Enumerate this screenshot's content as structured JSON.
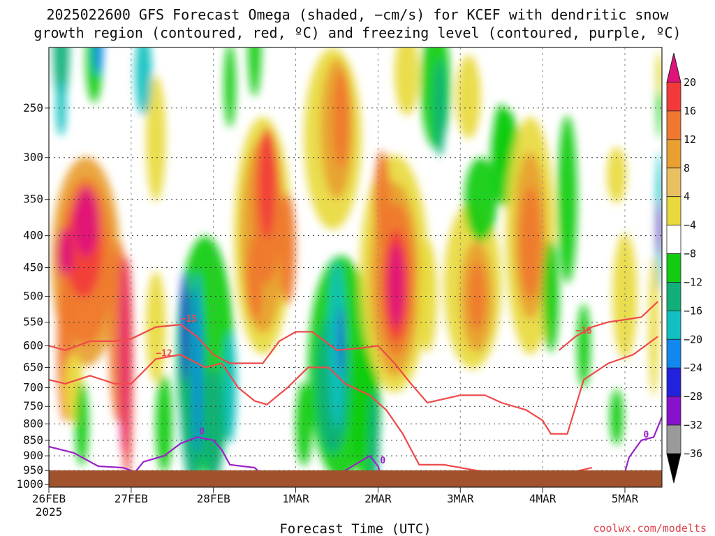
{
  "chart_data": {
    "type": "time-height contour (shaded omega with contoured temperature)",
    "title_lines": [
      "2025022600 GFS Forecast Omega (shaded, −cm/s) for KCEF with dendritic snow",
      "growth region (contoured, red, ºC) and freezing level (contoured, purple, ºC)"
    ],
    "xlabel": "Forecast Time (UTC)",
    "ylabel": "",
    "credit": "coolwx.com/modelts",
    "x_ticks": [
      {
        "label": "26FEB",
        "sublabel": "2025",
        "day": 0
      },
      {
        "label": "27FEB",
        "day": 1
      },
      {
        "label": "28FEB",
        "day": 2
      },
      {
        "label": "1MAR",
        "day": 3
      },
      {
        "label": "2MAR",
        "day": 4
      },
      {
        "label": "3MAR",
        "day": 5
      },
      {
        "label": "4MAR",
        "day": 6
      },
      {
        "label": "5MAR",
        "day": 7
      }
    ],
    "x_range_days": [
      0,
      7.45
    ],
    "y_ticks": [
      250,
      300,
      350,
      400,
      450,
      500,
      550,
      600,
      650,
      700,
      750,
      800,
      850,
      900,
      950,
      1000
    ],
    "y_range_hpa": [
      200,
      1010
    ],
    "y_scale": "log-pressure",
    "grid": true,
    "colorbar": {
      "labels": [
        "20",
        "16",
        "12",
        "8",
        "4",
        "−4",
        "−8",
        "−12",
        "−16",
        "−20",
        "−24",
        "−28",
        "−32",
        "−36"
      ],
      "colors": [
        "#e0137a",
        "#f23a3a",
        "#f07830",
        "#e8a030",
        "#e8c060",
        "#e8da3c",
        "#ffffff",
        "#11cc11",
        "#11b07a",
        "#11c0c0",
        "#1188ee",
        "#2222dd",
        "#8811cc",
        "#9a9a9a"
      ]
    },
    "ground_color": "#a0522d",
    "contours": {
      "dgz_red": [
        {
          "label": "−12",
          "points": [
            [
              0,
              680
            ],
            [
              0.2,
              690
            ],
            [
              0.5,
              670
            ],
            [
              0.8,
              690
            ],
            [
              1.0,
              690
            ],
            [
              1.3,
              630
            ],
            [
              1.6,
              620
            ],
            [
              1.9,
              650
            ],
            [
              2.1,
              640
            ],
            [
              2.3,
              700
            ],
            [
              2.5,
              735
            ],
            [
              2.65,
              745
            ],
            [
              2.9,
              700
            ],
            [
              3.15,
              650
            ],
            [
              3.4,
              650
            ],
            [
              3.6,
              690
            ],
            [
              3.9,
              720
            ],
            [
              4.1,
              760
            ],
            [
              4.3,
              830
            ],
            [
              4.5,
              930
            ],
            [
              4.8,
              930
            ],
            [
              5.2,
              950
            ],
            [
              5.6,
              960
            ],
            [
              5.9,
              965
            ],
            [
              6.3,
              960
            ],
            [
              6.6,
              940
            ]
          ]
        },
        {
          "label": "−15",
          "points": [
            [
              0,
              600
            ],
            [
              0.2,
              610
            ],
            [
              0.5,
              590
            ],
            [
              0.8,
              590
            ],
            [
              1.0,
              585
            ],
            [
              1.3,
              560
            ],
            [
              1.6,
              555
            ],
            [
              1.8,
              580
            ],
            [
              2.0,
              620
            ],
            [
              2.2,
              640
            ],
            [
              2.4,
              640
            ],
            [
              2.6,
              640
            ],
            [
              2.8,
              590
            ],
            [
              3.0,
              570
            ],
            [
              3.2,
              570
            ],
            [
              3.5,
              610
            ],
            [
              3.8,
              605
            ],
            [
              4.0,
              600
            ],
            [
              4.2,
              640
            ],
            [
              4.4,
              690
            ],
            [
              4.6,
              740
            ],
            [
              5.0,
              720
            ],
            [
              5.3,
              720
            ],
            [
              5.5,
              740
            ],
            [
              5.8,
              760
            ],
            [
              6.0,
              790
            ],
            [
              6.1,
              830
            ],
            [
              6.3,
              830
            ],
            [
              6.5,
              680
            ],
            [
              6.8,
              640
            ],
            [
              7.1,
              620
            ],
            [
              7.4,
              580
            ]
          ]
        },
        {
          "label": "−18",
          "points": [
            [
              6.2,
              610
            ],
            [
              6.4,
              580
            ],
            [
              6.6,
              560
            ],
            [
              6.8,
              550
            ],
            [
              7.0,
              545
            ],
            [
              7.2,
              540
            ],
            [
              7.4,
              510
            ]
          ]
        }
      ],
      "freezing_purple": [
        {
          "label": "0",
          "points": [
            [
              0,
              870
            ],
            [
              0.3,
              890
            ],
            [
              0.6,
              935
            ],
            [
              0.9,
              940
            ],
            [
              1.05,
              955
            ],
            [
              1.15,
              920
            ],
            [
              1.4,
              900
            ],
            [
              1.6,
              860
            ],
            [
              1.8,
              840
            ],
            [
              2.0,
              850
            ],
            [
              2.1,
              880
            ],
            [
              2.2,
              930
            ],
            [
              2.5,
              940
            ],
            [
              2.65,
              980
            ]
          ]
        },
        {
          "label": "0",
          "points": [
            [
              3.4,
              980
            ],
            [
              3.6,
              950
            ],
            [
              3.9,
              900
            ],
            [
              4.0,
              935
            ],
            [
              4.05,
              980
            ]
          ]
        },
        {
          "label": "0",
          "points": [
            [
              6.6,
              980
            ],
            [
              6.8,
              955
            ],
            [
              7.0,
              955
            ],
            [
              7.05,
              905
            ],
            [
              7.2,
              850
            ],
            [
              7.35,
              840
            ],
            [
              7.45,
              780
            ]
          ]
        }
      ]
    }
  }
}
